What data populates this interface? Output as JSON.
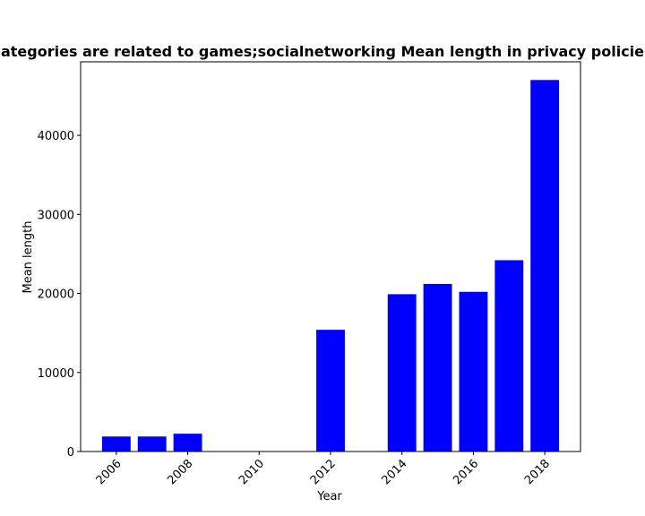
{
  "chart_data": {
    "type": "bar",
    "title": "ategories are related to games;socialnetworking Mean length in privacy policie",
    "xlabel": "Year",
    "ylabel": "Mean length",
    "x": [
      2006,
      2007,
      2008,
      2012,
      2014,
      2015,
      2016,
      2017,
      2018
    ],
    "values": [
      1900,
      1900,
      2250,
      15400,
      19900,
      21200,
      20200,
      24200,
      47000
    ],
    "xlim": [
      2005,
      2019
    ],
    "ylim": [
      0,
      49300
    ],
    "xticks": [
      "2006",
      "2008",
      "2010",
      "2012",
      "2014",
      "2016",
      "2018"
    ],
    "yticks": [
      "0",
      "10000",
      "20000",
      "30000",
      "40000"
    ],
    "bar_color": "#0000ff",
    "grid": false,
    "legend": false
  }
}
